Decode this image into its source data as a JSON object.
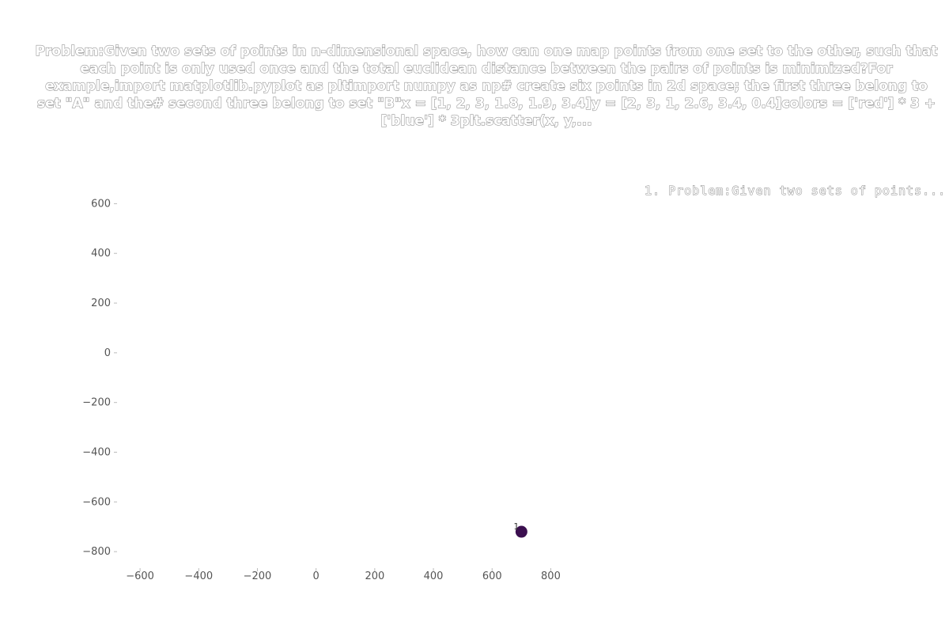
{
  "chart_data": {
    "type": "scatter",
    "title": "Problem:Given two sets of points in n-dimensional space, how can one map points from one set to the other, such that each point is only used once and the total euclidean distance between the pairs of points is minimized?For example,import matplotlib.pyplot as pltimport numpy as np# create six points in 2d space; the first three belong to set \"A\" and the# second three belong to set \"B\"x = [1, 2, 3, 1.8, 1.9, 3.4]y = [2, 3, 1, 2.6, 3.4, 0.4]colors = ['red'] * 3 + ['blue'] * 3plt.scatter(x, y,...",
    "legend": [
      "1. Problem:Given two sets of points..."
    ],
    "legend_placement": "top-right",
    "xlim": [
      -700,
      850
    ],
    "ylim": [
      -860,
      700
    ],
    "x_ticks": [
      -600,
      -400,
      -200,
      0,
      200,
      400,
      600,
      800
    ],
    "y_ticks": [
      600,
      400,
      200,
      0,
      -200,
      -400,
      -600,
      -800
    ],
    "x_tick_labels": [
      "−600",
      "−400",
      "−200",
      "0",
      "200",
      "400",
      "600",
      "800"
    ],
    "y_tick_labels": [
      "600",
      "400",
      "200",
      "0",
      "−200",
      "−400",
      "−600",
      "−800"
    ],
    "grid": false,
    "points": [
      {
        "label": "1",
        "x": 700,
        "y": -720,
        "color": "#3b0f4f"
      }
    ]
  }
}
